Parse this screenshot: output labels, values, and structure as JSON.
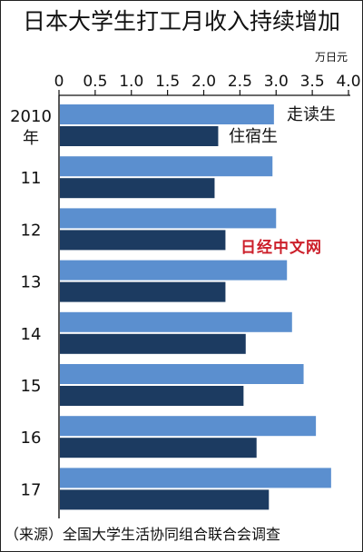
{
  "chart_data": {
    "type": "bar",
    "orientation": "horizontal",
    "title": "日本大学生打工月收入持续增加",
    "unit": "万日元",
    "xlim": [
      0,
      4.0
    ],
    "ticks": [
      "0",
      "0.5",
      "1.0",
      "1.5",
      "2.0",
      "2.5",
      "3.0",
      "3.5",
      "4.0"
    ],
    "categories": [
      {
        "line1": "2010",
        "line2": "年"
      },
      {
        "line1": "11",
        "line2": ""
      },
      {
        "line1": "12",
        "line2": ""
      },
      {
        "line1": "13",
        "line2": ""
      },
      {
        "line1": "14",
        "line2": ""
      },
      {
        "line1": "15",
        "line2": ""
      },
      {
        "line1": "16",
        "line2": ""
      },
      {
        "line1": "17",
        "line2": ""
      }
    ],
    "series": [
      {
        "name": "走读生",
        "color": "#5b8fcf",
        "values": [
          2.97,
          2.95,
          3.0,
          3.15,
          3.22,
          3.38,
          3.55,
          3.76
        ]
      },
      {
        "name": "住宿生",
        "color": "#1c3b61",
        "values": [
          2.2,
          2.15,
          2.3,
          2.3,
          2.58,
          2.55,
          2.73,
          2.9
        ]
      }
    ],
    "grid": false,
    "legend": "inline-first-group"
  },
  "watermark": "日经中文网",
  "source": "（来源）全国大学生活协同组合联合会调查",
  "colors": {
    "axis": "#111111",
    "background": "#ffffff",
    "watermark": "#cc1f2a"
  }
}
